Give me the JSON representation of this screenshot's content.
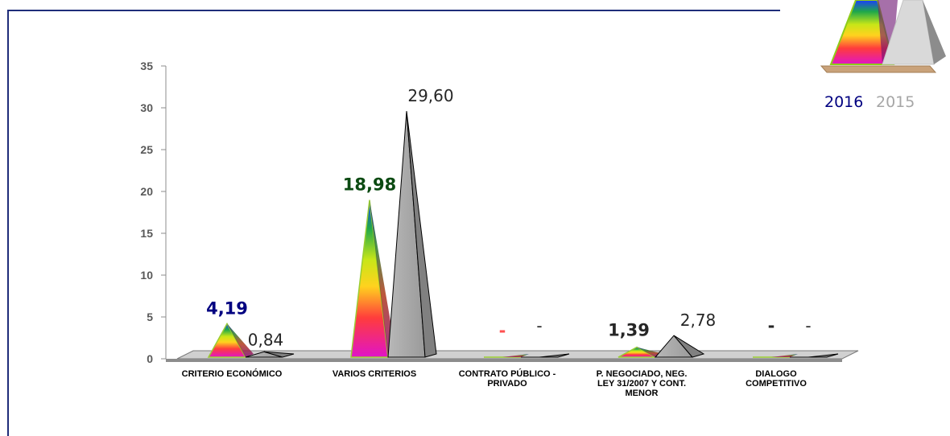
{
  "colors": {
    "frame": "#1f2d7a",
    "series_2015_face": "#a6a6a6",
    "series_2015_side": "#808080",
    "floor": "#8c8c8c",
    "label_2016_first": "#000080",
    "label_2016_second": "#0b4a12",
    "label_dash_red": "#ff5050",
    "legend_2016": "#000080",
    "legend_2015": "#a6a6a6"
  },
  "chart_data": {
    "type": "bar",
    "shape": "3d-pyramid",
    "title": "",
    "xlabel": "",
    "ylabel": "",
    "ylim": [
      0,
      35
    ],
    "yticks": [
      "0",
      "5",
      "10",
      "15",
      "20",
      "25",
      "30",
      "35"
    ],
    "categories": [
      [
        "CRITERIO ECONÓMICO"
      ],
      [
        "VARIOS CRITERIOS"
      ],
      [
        "CONTRATO PÚBLICO -",
        "PRIVADO"
      ],
      [
        "P. NEGOCIADO, NEG.",
        "LEY 31/2007 Y CONT.",
        "MENOR"
      ],
      [
        "DIALOGO",
        "COMPETITIVO"
      ]
    ],
    "series": [
      {
        "name": "2016",
        "fill": "rainbow-gradient",
        "values": [
          4.19,
          18.98,
          0,
          1.39,
          0
        ],
        "labels": [
          "4,19",
          "18,98",
          "-",
          "1,39",
          "-"
        ]
      },
      {
        "name": "2015",
        "fill": "gray",
        "values": [
          0.84,
          29.6,
          0,
          2.78,
          0
        ],
        "labels": [
          "0,84",
          "29,60",
          "-",
          "2,78",
          "-"
        ]
      }
    ],
    "legend": "top-right",
    "grid": false
  }
}
